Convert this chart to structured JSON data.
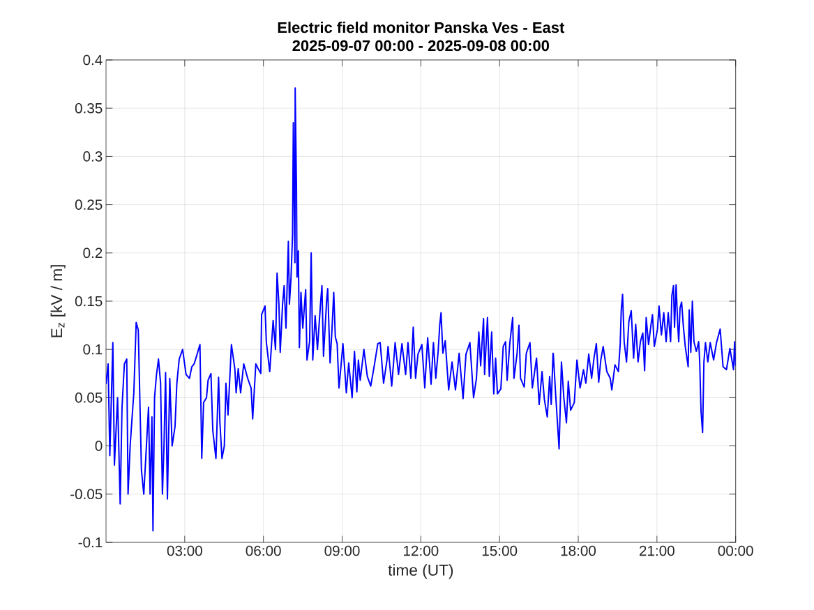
{
  "chart_data": {
    "type": "line",
    "title": "Electric field monitor Panska Ves - East",
    "subtitle": "2025-09-07 00:00 - 2025-09-08 00:00",
    "xlabel": "time (UT)",
    "ylabel": "E$_{z}$ [kV / m]",
    "color": "#0000ff",
    "grid": true,
    "xlim": [
      0,
      24
    ],
    "ylim": [
      -0.1,
      0.4
    ],
    "xticks": [
      {
        "value": 3,
        "label": "03:00"
      },
      {
        "value": 6,
        "label": "06:00"
      },
      {
        "value": 9,
        "label": "09:00"
      },
      {
        "value": 12,
        "label": "12:00"
      },
      {
        "value": 15,
        "label": "15:00"
      },
      {
        "value": 18,
        "label": "18:00"
      },
      {
        "value": 21,
        "label": "21:00"
      },
      {
        "value": 24,
        "label": "00:00"
      }
    ],
    "yticks": [
      -0.1,
      -0.05,
      0,
      0.05,
      0.1,
      0.15,
      0.2,
      0.25,
      0.3,
      0.35,
      0.4
    ],
    "x": [
      0.0,
      0.08,
      0.145,
      0.26,
      0.32,
      0.44,
      0.54,
      0.61,
      0.7,
      0.79,
      0.84,
      0.92,
      0.995,
      1.06,
      1.15,
      1.23,
      1.28,
      1.35,
      1.44,
      1.54,
      1.62,
      1.68,
      1.75,
      1.79,
      1.85,
      1.92,
      2.0,
      2.08,
      2.15,
      2.21,
      2.27,
      2.34,
      2.43,
      2.52,
      2.63,
      2.7,
      2.79,
      2.92,
      3.05,
      3.18,
      3.27,
      3.36,
      3.45,
      3.58,
      3.65,
      3.72,
      3.83,
      3.89,
      4.0,
      4.07,
      4.19,
      4.29,
      4.34,
      4.42,
      4.51,
      4.57,
      4.65,
      4.78,
      4.91,
      4.96,
      5.04,
      5.13,
      5.25,
      5.4,
      5.53,
      5.59,
      5.71,
      5.8,
      5.9,
      5.93,
      6.06,
      6.11,
      6.24,
      6.37,
      6.46,
      6.52,
      6.59,
      6.64,
      6.73,
      6.79,
      6.86,
      6.95,
      6.99,
      7.05,
      7.11,
      7.14,
      7.2,
      7.21,
      7.26,
      7.28,
      7.33,
      7.37,
      7.43,
      7.5,
      7.61,
      7.66,
      7.76,
      7.82,
      7.88,
      7.97,
      8.06,
      8.17,
      8.23,
      8.29,
      8.41,
      8.45,
      8.54,
      8.61,
      8.68,
      8.74,
      8.81,
      8.88,
      8.99,
      9.03,
      9.16,
      9.25,
      9.38,
      9.47,
      9.56,
      9.62,
      9.69,
      9.83,
      9.96,
      10.09,
      10.23,
      10.36,
      10.45,
      10.58,
      10.71,
      10.75,
      10.89,
      11.02,
      11.15,
      11.28,
      11.42,
      11.51,
      11.62,
      11.71,
      11.8,
      11.89,
      12.04,
      12.15,
      12.26,
      12.39,
      12.48,
      12.57,
      12.66,
      12.72,
      12.77,
      12.84,
      12.93,
      13.06,
      13.19,
      13.32,
      13.46,
      13.61,
      13.72,
      13.87,
      14.01,
      14.12,
      14.21,
      14.28,
      14.39,
      14.43,
      14.54,
      14.61,
      14.7,
      14.78,
      14.85,
      14.92,
      15.05,
      15.14,
      15.23,
      15.29,
      15.39,
      15.5,
      15.55,
      15.67,
      15.74,
      15.8,
      15.94,
      16.02,
      16.16,
      16.25,
      16.41,
      16.51,
      16.62,
      16.71,
      16.82,
      16.91,
      16.97,
      17.04,
      17.05,
      17.14,
      17.27,
      17.36,
      17.45,
      17.55,
      17.62,
      17.71,
      17.85,
      17.95,
      18.07,
      18.2,
      18.29,
      18.4,
      18.51,
      18.6,
      18.69,
      18.78,
      18.86,
      18.95,
      19.09,
      19.22,
      19.28,
      19.4,
      19.53,
      19.6,
      19.64,
      19.69,
      19.75,
      19.84,
      19.93,
      20.02,
      20.11,
      20.19,
      20.28,
      20.37,
      20.46,
      20.53,
      20.59,
      20.68,
      20.77,
      20.83,
      20.9,
      21.02,
      21.08,
      21.17,
      21.26,
      21.35,
      21.43,
      21.52,
      21.57,
      21.63,
      21.67,
      21.73,
      21.79,
      21.83,
      21.88,
      21.94,
      22.01,
      22.08,
      22.19,
      22.23,
      22.29,
      22.35,
      22.41,
      22.5,
      22.59,
      22.63,
      22.68,
      22.74,
      22.79,
      22.85,
      22.94,
      23.03,
      23.16,
      23.27,
      23.41,
      23.52,
      23.65,
      23.78,
      23.92,
      23.96,
      24.0
    ],
    "values": [
      0.064,
      0.085,
      -0.01,
      0.107,
      -0.02,
      0.05,
      -0.06,
      0.04,
      0.085,
      0.09,
      -0.05,
      0.0,
      0.03,
      0.055,
      0.128,
      0.12,
      0.06,
      -0.025,
      -0.05,
      0.0,
      0.04,
      -0.05,
      0.03,
      -0.088,
      0.05,
      0.073,
      0.09,
      0.065,
      -0.05,
      0.0,
      0.076,
      -0.055,
      0.07,
      0.0,
      0.02,
      0.065,
      0.09,
      0.1,
      0.074,
      0.07,
      0.082,
      0.085,
      0.093,
      0.105,
      -0.013,
      0.045,
      0.05,
      0.068,
      0.075,
      0.016,
      -0.013,
      0.071,
      0.025,
      -0.013,
      0.0,
      0.065,
      0.032,
      0.105,
      0.08,
      0.055,
      0.08,
      0.055,
      0.085,
      0.07,
      0.06,
      0.028,
      0.085,
      0.08,
      0.075,
      0.136,
      0.145,
      0.108,
      0.077,
      0.13,
      0.1,
      0.179,
      0.147,
      0.097,
      0.147,
      0.166,
      0.122,
      0.212,
      0.147,
      0.173,
      0.219,
      0.335,
      0.19,
      0.371,
      0.267,
      0.175,
      0.202,
      0.102,
      0.159,
      0.122,
      0.162,
      0.089,
      0.108,
      0.2,
      0.089,
      0.135,
      0.1,
      0.145,
      0.166,
      0.093,
      0.151,
      0.163,
      0.086,
      0.119,
      0.159,
      0.113,
      0.106,
      0.06,
      0.093,
      0.106,
      0.055,
      0.086,
      0.05,
      0.098,
      0.056,
      0.089,
      0.068,
      0.1,
      0.072,
      0.062,
      0.084,
      0.106,
      0.107,
      0.065,
      0.089,
      0.103,
      0.062,
      0.107,
      0.074,
      0.106,
      0.074,
      0.107,
      0.07,
      0.123,
      0.07,
      0.095,
      0.105,
      0.06,
      0.112,
      0.064,
      0.107,
      0.07,
      0.098,
      0.125,
      0.138,
      0.096,
      0.109,
      0.058,
      0.087,
      0.058,
      0.096,
      0.049,
      0.095,
      0.107,
      0.05,
      0.07,
      0.118,
      0.083,
      0.132,
      0.074,
      0.133,
      0.072,
      0.118,
      0.054,
      0.091,
      0.054,
      0.059,
      0.103,
      0.108,
      0.068,
      0.106,
      0.133,
      0.07,
      0.096,
      0.125,
      0.07,
      0.061,
      0.096,
      0.107,
      0.06,
      0.091,
      0.043,
      0.077,
      0.048,
      0.03,
      0.072,
      0.043,
      0.096,
      0.095,
      0.053,
      -0.003,
      0.087,
      0.05,
      0.024,
      0.067,
      0.037,
      0.045,
      0.089,
      0.06,
      0.079,
      0.065,
      0.095,
      0.07,
      0.091,
      0.106,
      0.066,
      0.089,
      0.103,
      0.077,
      0.07,
      0.058,
      0.084,
      0.077,
      0.106,
      0.141,
      0.157,
      0.108,
      0.087,
      0.129,
      0.14,
      0.091,
      0.126,
      0.087,
      0.108,
      0.117,
      0.078,
      0.133,
      0.105,
      0.125,
      0.136,
      0.103,
      0.121,
      0.145,
      0.115,
      0.138,
      0.108,
      0.138,
      0.108,
      0.156,
      0.166,
      0.123,
      0.167,
      0.127,
      0.108,
      0.143,
      0.149,
      0.123,
      0.103,
      0.082,
      0.141,
      0.097,
      0.15,
      0.108,
      0.098,
      0.108,
      0.087,
      0.036,
      0.014,
      0.087,
      0.107,
      0.087,
      0.107,
      0.089,
      0.107,
      0.121,
      0.082,
      0.079,
      0.101,
      0.079,
      0.108,
      0.083
    ]
  }
}
